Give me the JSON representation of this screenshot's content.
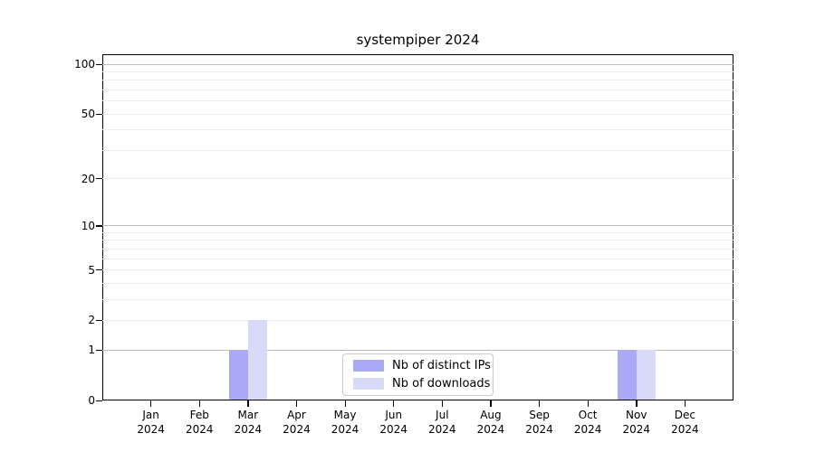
{
  "chart_data": {
    "type": "bar",
    "title": "systempiper 2024",
    "categories": [
      "Jan 2024",
      "Feb 2024",
      "Mar 2024",
      "Apr 2024",
      "May 2024",
      "Jun 2024",
      "Jul 2024",
      "Aug 2024",
      "Sep 2024",
      "Oct 2024",
      "Nov 2024",
      "Dec 2024"
    ],
    "series": [
      {
        "name": "Nb of distinct IPs",
        "color": "#a9a9f6",
        "values": [
          0,
          0,
          1,
          0,
          0,
          0,
          0,
          0,
          0,
          0,
          1,
          0
        ]
      },
      {
        "name": "Nb of downloads",
        "color": "#d9d9f8",
        "values": [
          0,
          0,
          2,
          0,
          0,
          0,
          0,
          0,
          0,
          0,
          1,
          0
        ]
      }
    ],
    "yticks": [
      0,
      1,
      2,
      5,
      10,
      20,
      50,
      100
    ],
    "minor_gridlines": [
      2,
      3,
      4,
      5,
      6,
      7,
      8,
      9,
      20,
      30,
      40,
      50,
      60,
      70,
      80,
      90
    ],
    "major_gridlines": [
      1,
      10,
      100
    ],
    "ylim": [
      0,
      115
    ],
    "yscale": "log1p",
    "xlabel": "",
    "ylabel": "",
    "grid": "horizontal",
    "legend_position": "bottom-center"
  },
  "colors": {
    "background": "#ffffff",
    "spine": "#000000",
    "grid_major": "#bcbcbc",
    "grid_minor": "#ebebeb",
    "legend_border": "#cccccc"
  }
}
